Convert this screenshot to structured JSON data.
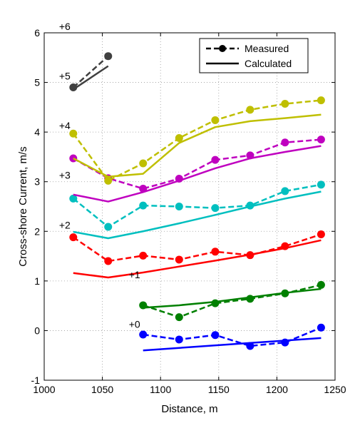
{
  "chart_data": {
    "type": "line",
    "title": "",
    "xlabel": "Distance, m",
    "ylabel": "Cross-shore Current, m/s",
    "xlim": [
      1000,
      1250
    ],
    "ylim": [
      -1,
      6
    ],
    "xticks": [
      1000,
      1050,
      1100,
      1150,
      1200,
      1250
    ],
    "yticks": [
      -1,
      0,
      1,
      2,
      3,
      4,
      5,
      6
    ],
    "grid": true,
    "legend": {
      "placement": "top-right",
      "entries": [
        {
          "label": "Measured",
          "style": "dashed-marker"
        },
        {
          "label": "Calculated",
          "style": "solid"
        }
      ]
    },
    "series": [
      {
        "offset_label": "+0",
        "color": "#0000ff",
        "label_pos": {
          "x": 1085,
          "y": 0
        },
        "measured": {
          "x": [
            1085,
            1116,
            1147,
            1177,
            1207,
            1238
          ],
          "y": [
            -0.08,
            -0.18,
            -0.09,
            -0.31,
            -0.24,
            0.06
          ]
        },
        "calculated": {
          "x": [
            1085,
            1238
          ],
          "y": [
            -0.4,
            -0.15
          ]
        }
      },
      {
        "offset_label": "+1",
        "color": "#008000",
        "label_pos": {
          "x": 1085,
          "y": 1
        },
        "measured": {
          "x": [
            1085,
            1116,
            1147,
            1177,
            1207,
            1238
          ],
          "y": [
            0.51,
            0.27,
            0.55,
            0.64,
            0.75,
            0.92
          ]
        },
        "calculated": {
          "x": [
            1085,
            1116,
            1147,
            1177,
            1207,
            1238
          ],
          "y": [
            0.46,
            0.51,
            0.58,
            0.67,
            0.76,
            0.84
          ]
        }
      },
      {
        "offset_label": "+2",
        "color": "#ff0000",
        "label_pos": {
          "x": 1025,
          "y": 2
        },
        "measured": {
          "x": [
            1025,
            1055,
            1085,
            1116,
            1147,
            1177,
            1207,
            1238
          ],
          "y": [
            1.88,
            1.4,
            1.51,
            1.43,
            1.59,
            1.52,
            1.7,
            1.94
          ]
        },
        "calculated": {
          "x": [
            1025,
            1055,
            1085,
            1116,
            1147,
            1177,
            1207,
            1238
          ],
          "y": [
            1.16,
            1.07,
            1.17,
            1.29,
            1.41,
            1.53,
            1.66,
            1.82
          ]
        }
      },
      {
        "offset_label": "+3",
        "color": "#00bfbf",
        "label_pos": {
          "x": 1025,
          "y": 3
        },
        "measured": {
          "x": [
            1025,
            1055,
            1085,
            1116,
            1147,
            1177,
            1207,
            1238
          ],
          "y": [
            2.66,
            2.09,
            2.52,
            2.5,
            2.47,
            2.52,
            2.81,
            2.94
          ]
        },
        "calculated": {
          "x": [
            1025,
            1055,
            1085,
            1116,
            1147,
            1177,
            1207,
            1238
          ],
          "y": [
            1.99,
            1.86,
            2.0,
            2.16,
            2.33,
            2.5,
            2.66,
            2.8
          ]
        }
      },
      {
        "offset_label": "+4",
        "color": "#bf00bf",
        "label_pos": {
          "x": 1025,
          "y": 4
        },
        "measured": {
          "x": [
            1025,
            1055,
            1085,
            1116,
            1147,
            1177,
            1207,
            1238
          ],
          "y": [
            3.47,
            3.07,
            2.86,
            3.06,
            3.44,
            3.53,
            3.79,
            3.85
          ]
        },
        "calculated": {
          "x": [
            1025,
            1055,
            1085,
            1116,
            1147,
            1177,
            1207,
            1238
          ],
          "y": [
            2.74,
            2.6,
            2.79,
            3.02,
            3.27,
            3.47,
            3.6,
            3.72
          ]
        }
      },
      {
        "offset_label": "+5",
        "color": "#bfbf00",
        "label_pos": {
          "x": 1025,
          "y": 5
        },
        "measured": {
          "x": [
            1025,
            1055,
            1085,
            1116,
            1147,
            1177,
            1207,
            1238
          ],
          "y": [
            3.97,
            3.02,
            3.37,
            3.88,
            4.24,
            4.45,
            4.57,
            4.64
          ]
        },
        "calculated": {
          "x": [
            1025,
            1055,
            1085,
            1116,
            1147,
            1177,
            1207,
            1238
          ],
          "y": [
            3.47,
            3.1,
            3.16,
            3.78,
            4.1,
            4.22,
            4.28,
            4.35
          ]
        }
      },
      {
        "offset_label": "+6",
        "color": "#404040",
        "label_pos": {
          "x": 1025,
          "y": 6
        },
        "measured": {
          "x": [
            1025,
            1055
          ],
          "y": [
            4.9,
            5.53
          ]
        },
        "calculated": {
          "x": [
            1025,
            1055
          ],
          "y": [
            4.86,
            5.33
          ]
        }
      }
    ]
  }
}
